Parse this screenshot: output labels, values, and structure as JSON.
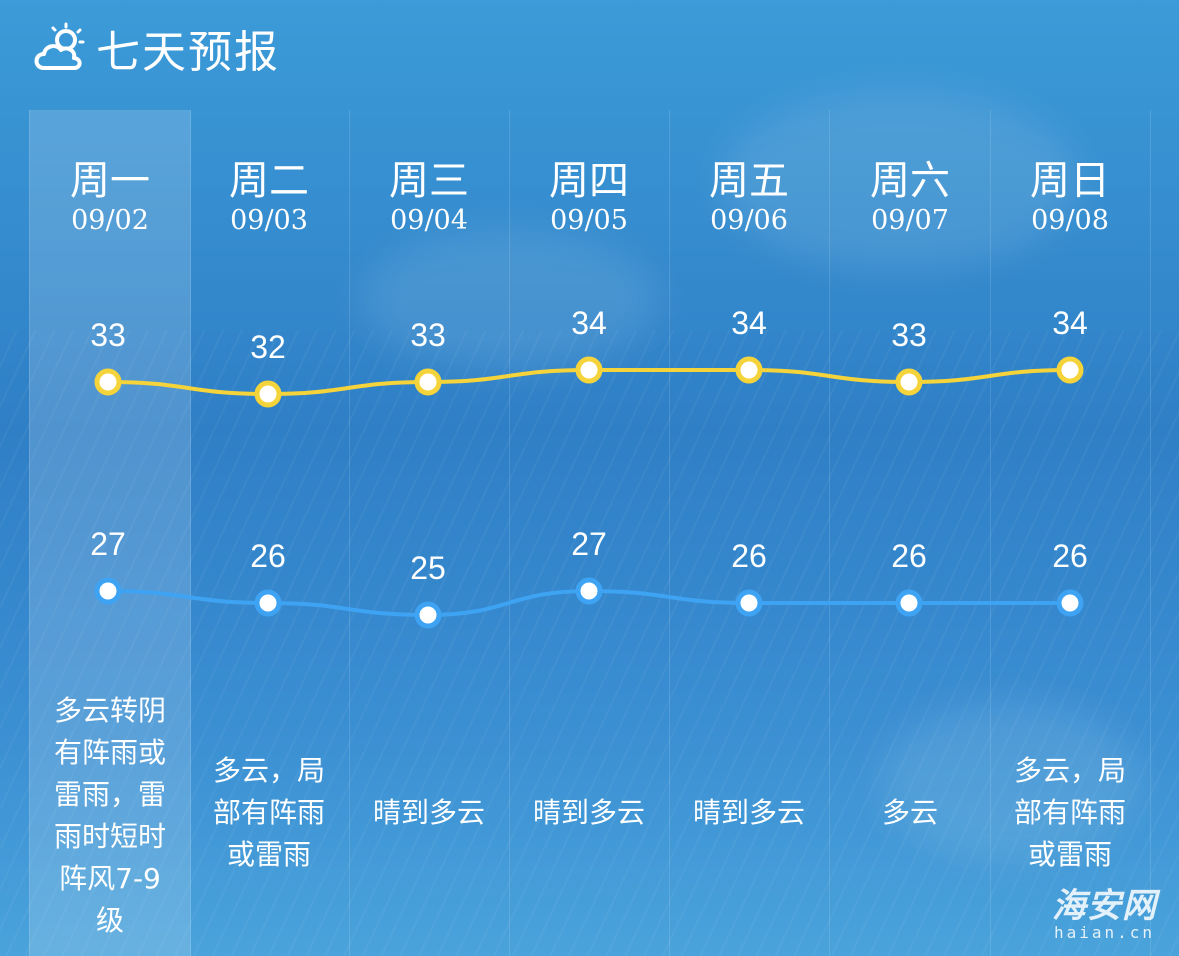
{
  "header": {
    "title": "七天预报",
    "icon": "cloud-sun-icon"
  },
  "days": [
    {
      "day": "周一",
      "date": "09/02",
      "weather": "多云转阴\n有阵雨或\n雷雨，雷\n雨时短时\n阵风7-9\n级"
    },
    {
      "day": "周二",
      "date": "09/03",
      "weather": "多云，局\n部有阵雨\n或雷雨"
    },
    {
      "day": "周三",
      "date": "09/04",
      "weather": "晴到多云"
    },
    {
      "day": "周四",
      "date": "09/05",
      "weather": "晴到多云"
    },
    {
      "day": "周五",
      "date": "09/06",
      "weather": "晴到多云"
    },
    {
      "day": "周六",
      "date": "09/07",
      "weather": "多云"
    },
    {
      "day": "周日",
      "date": "09/08",
      "weather": "多云，局\n部有阵雨\n或雷雨"
    }
  ],
  "selected_index": 0,
  "colors": {
    "high_line": "#f5d33a",
    "low_line": "#3ea3f2",
    "point_fill": "#ffffff"
  },
  "chart_data": {
    "type": "line",
    "categories": [
      "周一",
      "周二",
      "周三",
      "周四",
      "周五",
      "周六",
      "周日"
    ],
    "series": [
      {
        "values": [
          33,
          32,
          33,
          34,
          34,
          33,
          34
        ]
      },
      {
        "values": [
          27,
          26,
          25,
          27,
          26,
          26,
          26
        ]
      }
    ]
  },
  "watermark": {
    "main": "海安网",
    "sub": "haian.cn"
  }
}
